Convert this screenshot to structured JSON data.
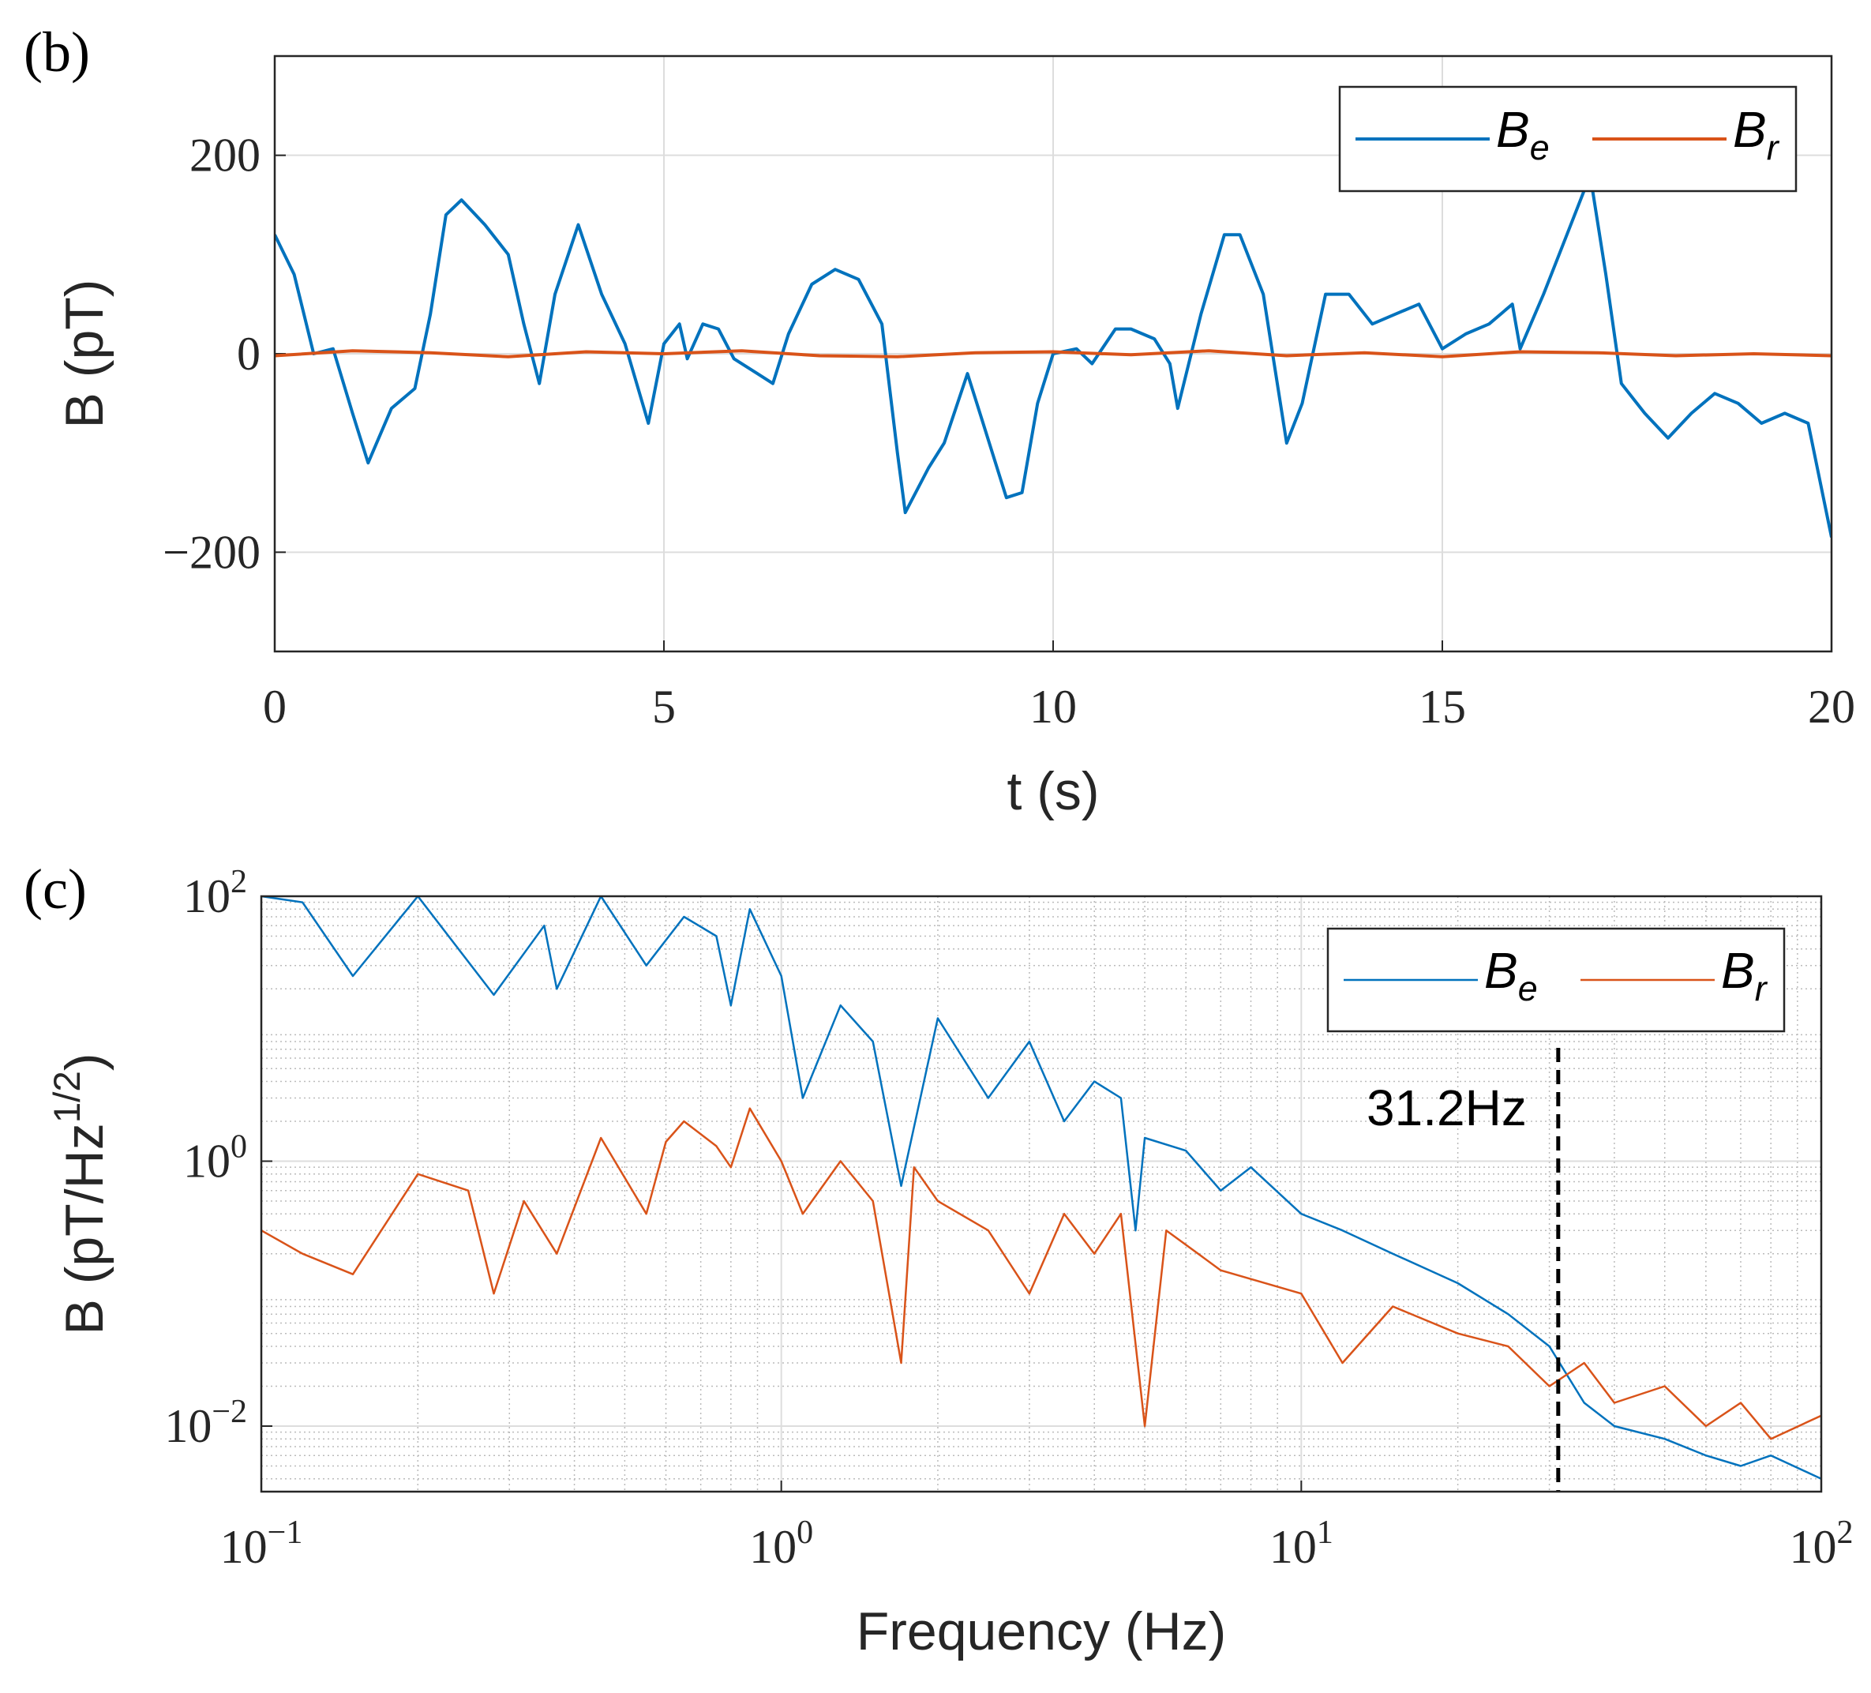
{
  "chart_data": [
    {
      "type": "line",
      "panel": "(b)",
      "xlabel": "t (s)",
      "ylabel": "B (pT)",
      "xlim": [
        0,
        20
      ],
      "xticks": [
        0,
        5,
        10,
        15,
        20
      ],
      "ylim": [
        -300,
        300
      ],
      "yticks": [
        {
          "value": -200,
          "label": "−200"
        },
        0,
        200
      ],
      "grid": true,
      "legend": "upper right",
      "series": [
        {
          "name": "B_{e}",
          "color": "#0072BD",
          "x": [
            0,
            0.25,
            0.5,
            0.75,
            1.0,
            1.2,
            1.5,
            1.8,
            2.0,
            2.2,
            2.4,
            2.7,
            3.0,
            3.2,
            3.4,
            3.6,
            3.9,
            4.2,
            4.5,
            4.8,
            5.0,
            5.2,
            5.3,
            5.5,
            5.7,
            5.9,
            6.2,
            6.4,
            6.6,
            6.9,
            7.2,
            7.5,
            7.8,
            8.0,
            8.1,
            8.4,
            8.6,
            8.9,
            9.1,
            9.4,
            9.6,
            9.8,
            10.0,
            10.3,
            10.5,
            10.8,
            11.0,
            11.3,
            11.5,
            11.6,
            11.9,
            12.2,
            12.4,
            12.7,
            13.0,
            13.2,
            13.5,
            13.8,
            14.1,
            14.4,
            14.7,
            15.0,
            15.3,
            15.6,
            15.9,
            16.0,
            16.3,
            16.6,
            16.9,
            17.1,
            17.3,
            17.6,
            17.9,
            18.2,
            18.5,
            18.8,
            19.1,
            19.4,
            19.7,
            20.0
          ],
          "values": [
            120,
            80,
            0,
            5,
            -60,
            -110,
            -55,
            -35,
            40,
            140,
            155,
            130,
            100,
            30,
            -30,
            60,
            130,
            60,
            10,
            -70,
            10,
            30,
            -5,
            30,
            25,
            -5,
            -20,
            -30,
            20,
            70,
            85,
            75,
            30,
            -100,
            -160,
            -115,
            -90,
            -20,
            -70,
            -145,
            -140,
            -50,
            0,
            5,
            -10,
            25,
            25,
            15,
            -10,
            -55,
            40,
            120,
            120,
            60,
            -90,
            -50,
            60,
            60,
            30,
            40,
            50,
            5,
            20,
            30,
            50,
            5,
            60,
            120,
            180,
            80,
            -30,
            -60,
            -85,
            -60,
            -40,
            -50,
            -70,
            -60,
            -70,
            -185
          ]
        },
        {
          "name": "B_{r}",
          "color": "#D95319",
          "x": [
            0,
            1,
            2,
            3,
            4,
            5,
            6,
            7,
            8,
            9,
            10,
            11,
            12,
            13,
            14,
            15,
            16,
            17,
            18,
            19,
            20
          ],
          "values": [
            -2,
            3,
            1,
            -3,
            2,
            0,
            3,
            -2,
            -3,
            1,
            2,
            -1,
            3,
            -2,
            1,
            -3,
            2,
            1,
            -2,
            0,
            -2
          ]
        }
      ]
    },
    {
      "type": "line",
      "panel": "(c)",
      "xlabel": "Frequency (Hz)",
      "ylabel": "B (pT/Hz^{1/2})",
      "xscale": "log",
      "yscale": "log",
      "xlim": [
        0.1,
        100
      ],
      "xticks": [
        {
          "value": 0.1,
          "label": "10^{−1}"
        },
        {
          "value": 1,
          "label": "10^{0}"
        },
        {
          "value": 10,
          "label": "10^{1}"
        },
        {
          "value": 100,
          "label": "10^{2}"
        }
      ],
      "ylim": [
        0.0032,
        100
      ],
      "yticks": [
        {
          "value": 0.01,
          "label": "10^{−2}"
        },
        {
          "value": 1,
          "label": "10^{0}"
        },
        {
          "value": 100,
          "label": "10^{2}"
        }
      ],
      "grid": true,
      "minor_grid": true,
      "legend": "upper right",
      "vline": 31.2,
      "annotation": "31.2Hz",
      "series": [
        {
          "name": "B_{e}",
          "color": "#0072BD",
          "x": [
            0.1,
            0.12,
            0.15,
            0.2,
            0.28,
            0.35,
            0.37,
            0.45,
            0.55,
            0.65,
            0.75,
            0.8,
            0.87,
            1.0,
            1.1,
            1.3,
            1.5,
            1.7,
            2,
            2.5,
            3,
            3.5,
            4,
            4.5,
            4.8,
            5,
            6,
            7,
            8,
            10,
            12,
            15,
            20,
            25,
            30,
            35,
            40,
            50,
            60,
            70,
            80,
            100
          ],
          "values": [
            100,
            90,
            25,
            100,
            18,
            60,
            20,
            100,
            30,
            70,
            50,
            15,
            80,
            25,
            3,
            15,
            8,
            0.65,
            12,
            3,
            8,
            2,
            4,
            3,
            0.3,
            1.5,
            1.2,
            0.6,
            0.9,
            0.4,
            0.3,
            0.2,
            0.12,
            0.07,
            0.04,
            0.015,
            0.01,
            0.008,
            0.006,
            0.005,
            0.006,
            0.004
          ]
        },
        {
          "name": "B_{r}",
          "color": "#D95319",
          "x": [
            0.1,
            0.12,
            0.15,
            0.2,
            0.25,
            0.28,
            0.32,
            0.37,
            0.45,
            0.55,
            0.6,
            0.65,
            0.75,
            0.8,
            0.87,
            1.0,
            1.1,
            1.3,
            1.5,
            1.7,
            1.8,
            2,
            2.5,
            3,
            3.5,
            4,
            4.5,
            5,
            5.5,
            7,
            10,
            12,
            15,
            20,
            25,
            30,
            35,
            40,
            50,
            60,
            70,
            80,
            100
          ],
          "values": [
            0.3,
            0.2,
            0.14,
            0.8,
            0.6,
            0.1,
            0.5,
            0.2,
            1.5,
            0.4,
            1.4,
            2,
            1.3,
            0.9,
            2.5,
            1.0,
            0.4,
            1.0,
            0.5,
            0.03,
            0.9,
            0.5,
            0.3,
            0.1,
            0.4,
            0.2,
            0.4,
            0.01,
            0.3,
            0.15,
            0.1,
            0.03,
            0.08,
            0.05,
            0.04,
            0.02,
            0.03,
            0.015,
            0.02,
            0.01,
            0.015,
            0.008,
            0.012
          ]
        }
      ]
    }
  ]
}
